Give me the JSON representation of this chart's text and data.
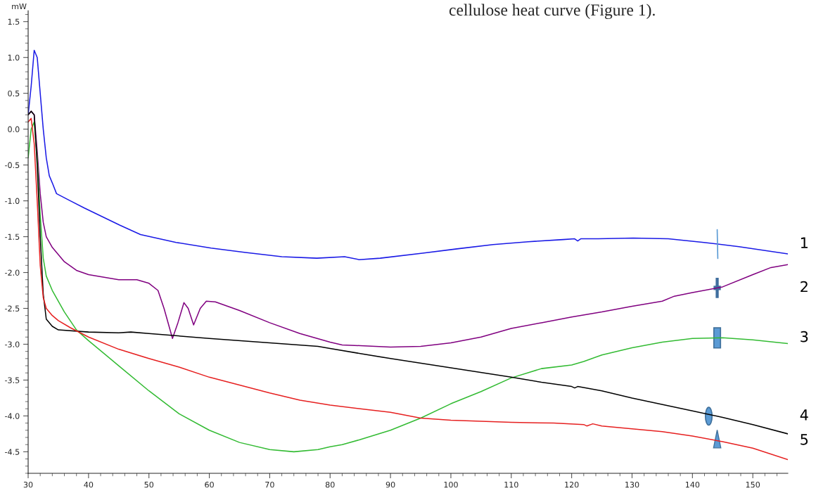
{
  "chart_data": {
    "type": "line",
    "ylabel": "mW",
    "annotations": [
      "cellulose heat curve (Figure 1)."
    ],
    "xlim": [
      30,
      155.8
    ],
    "xticks": [
      30,
      40,
      50,
      60,
      70,
      80,
      90,
      100,
      110,
      120,
      130,
      140,
      150
    ],
    "ylim": [
      -4.8,
      1.65
    ],
    "yticks": [
      -4.5,
      {
        "value": -4,
        "label": "-4.0"
      },
      -3.5,
      {
        "value": -3,
        "label": "-3.0"
      },
      -2.5,
      {
        "value": -2,
        "label": "-2.0"
      },
      -1.5,
      {
        "value": -1,
        "label": "-1.0"
      },
      -0.5,
      {
        "value": 0,
        "label": "0.0"
      },
      0.5,
      {
        "value": 1,
        "label": "1.0"
      },
      1.5
    ],
    "grid": false,
    "legend": false,
    "marker": "none",
    "line_style": "solid",
    "series": [
      {
        "name": "1",
        "color": "#1a1ae6",
        "x": [
          30,
          30.5,
          31,
          31.5,
          32,
          32.5,
          33,
          33.5,
          34,
          34.7,
          37,
          39.3,
          45.2,
          48.6,
          54.5,
          60.3,
          66,
          72,
          77.8,
          82.4,
          84.8,
          88.3,
          95.3,
          101,
          107,
          112.8,
          118.6,
          120.5,
          121,
          121.5,
          124.4,
          130.2,
          136,
          141.9,
          147.7,
          155.8
        ],
        "values": [
          0.2,
          0.6,
          1.1,
          1.0,
          0.5,
          0.0,
          -0.4,
          -0.65,
          -0.75,
          -0.9,
          -1.0,
          -1.1,
          -1.34,
          -1.47,
          -1.58,
          -1.66,
          -1.72,
          -1.78,
          -1.8,
          -1.78,
          -1.82,
          -1.8,
          -1.73,
          -1.67,
          -1.61,
          -1.57,
          -1.54,
          -1.53,
          -1.56,
          -1.53,
          -1.53,
          -1.52,
          -1.53,
          -1.58,
          -1.64,
          -1.74
        ]
      },
      {
        "name": "2",
        "color": "#800080",
        "x": [
          30,
          30.5,
          31,
          31.5,
          32,
          32.5,
          33,
          34,
          36,
          38,
          40,
          45,
          48,
          50,
          51.5,
          52.5,
          53.9,
          54.8,
          55.8,
          56.5,
          57.4,
          58.5,
          59.5,
          61,
          65,
          70,
          75,
          80,
          82,
          85,
          90,
          95,
          100,
          105,
          110,
          115,
          120,
          125,
          130,
          135,
          137,
          140,
          145,
          150,
          153,
          155.8
        ],
        "values": [
          0.2,
          0.25,
          0.2,
          -0.3,
          -0.9,
          -1.3,
          -1.5,
          -1.65,
          -1.85,
          -1.97,
          -2.03,
          -2.1,
          -2.1,
          -2.15,
          -2.25,
          -2.5,
          -2.92,
          -2.7,
          -2.42,
          -2.5,
          -2.73,
          -2.5,
          -2.4,
          -2.41,
          -2.53,
          -2.7,
          -2.85,
          -2.97,
          -3.01,
          -3.02,
          -3.04,
          -3.03,
          -2.98,
          -2.9,
          -2.78,
          -2.7,
          -2.62,
          -2.55,
          -2.47,
          -2.4,
          -2.33,
          -2.28,
          -2.2,
          -2.03,
          -1.93,
          -1.89
        ]
      },
      {
        "name": "3",
        "color": "#33bb33",
        "x": [
          30,
          30.5,
          31,
          31.5,
          32,
          32.5,
          33,
          34,
          36,
          38,
          40,
          45,
          50,
          55,
          60,
          65,
          70,
          74,
          78,
          80,
          82,
          85,
          90,
          95,
          100,
          105,
          110,
          115,
          120,
          122,
          125,
          130,
          135,
          140,
          145,
          150,
          155.8
        ],
        "values": [
          -0.4,
          0.0,
          0.1,
          -0.4,
          -1.2,
          -1.8,
          -2.05,
          -2.25,
          -2.55,
          -2.8,
          -2.95,
          -3.3,
          -3.65,
          -3.97,
          -4.2,
          -4.37,
          -4.47,
          -4.5,
          -4.47,
          -4.43,
          -4.4,
          -4.33,
          -4.2,
          -4.03,
          -3.83,
          -3.66,
          -3.47,
          -3.34,
          -3.29,
          -3.24,
          -3.15,
          -3.05,
          -2.97,
          -2.92,
          -2.91,
          -2.94,
          -2.99
        ]
      },
      {
        "name": "4",
        "color": "#000000",
        "x": [
          30,
          30.5,
          31,
          31.5,
          32,
          32.5,
          33,
          34,
          35,
          40,
          45,
          47,
          50,
          60,
          70,
          78,
          80,
          85,
          90,
          100,
          110,
          115,
          120,
          120.5,
          121,
          125,
          130,
          140,
          145,
          150,
          155.8
        ],
        "values": [
          0.2,
          0.25,
          0.2,
          -0.5,
          -1.5,
          -2.3,
          -2.65,
          -2.75,
          -2.8,
          -2.83,
          -2.84,
          -2.83,
          -2.85,
          -2.92,
          -2.98,
          -3.03,
          -3.06,
          -3.13,
          -3.2,
          -3.33,
          -3.46,
          -3.53,
          -3.59,
          -3.61,
          -3.59,
          -3.65,
          -3.75,
          -3.93,
          -4.02,
          -4.12,
          -4.25
        ]
      },
      {
        "name": "5",
        "color": "#e62020",
        "x": [
          30,
          30.5,
          31,
          31.5,
          32,
          32.5,
          33,
          34,
          35,
          37,
          40,
          45,
          50,
          55,
          60,
          65,
          70,
          75,
          80,
          85,
          90,
          95,
          100,
          110,
          117,
          122,
          122.5,
          123.5,
          125,
          130,
          135,
          140,
          145,
          150,
          155.8
        ],
        "values": [
          0.1,
          0.15,
          -0.2,
          -1.0,
          -1.9,
          -2.35,
          -2.5,
          -2.6,
          -2.67,
          -2.77,
          -2.9,
          -3.07,
          -3.2,
          -3.32,
          -3.46,
          -3.57,
          -3.68,
          -3.78,
          -3.85,
          -3.9,
          -3.95,
          -4.03,
          -4.06,
          -4.09,
          -4.1,
          -4.12,
          -4.14,
          -4.11,
          -4.14,
          -4.18,
          -4.22,
          -4.28,
          -4.36,
          -4.45,
          -4.61
        ]
      }
    ]
  }
}
